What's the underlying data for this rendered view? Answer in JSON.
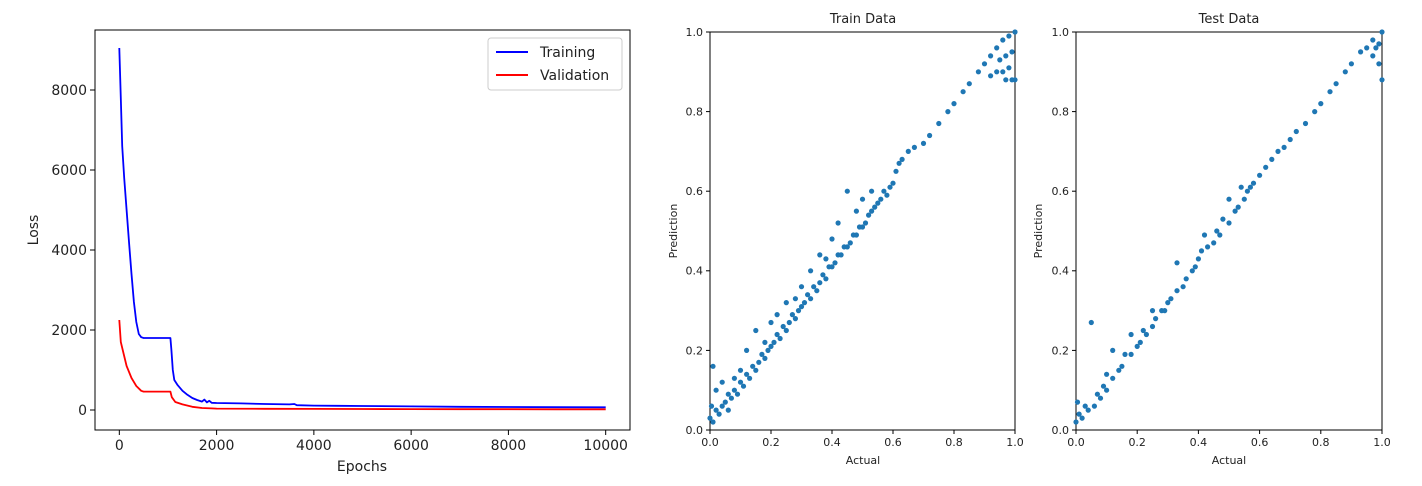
{
  "chart_data": [
    {
      "id": "loss",
      "type": "line",
      "title": "",
      "xlabel": "Epochs",
      "ylabel": "Loss",
      "xlim": [
        -500,
        10500
      ],
      "ylim": [
        -500,
        9500
      ],
      "xticks": [
        0,
        2000,
        4000,
        6000,
        8000,
        10000
      ],
      "yticks": [
        0,
        2000,
        4000,
        6000,
        8000
      ],
      "grid": false,
      "legend": "top-right",
      "series": [
        {
          "name": "Training",
          "color": "#0000ff",
          "x": [
            0,
            30,
            60,
            100,
            150,
            200,
            250,
            300,
            350,
            400,
            450,
            500,
            700,
            900,
            1050,
            1070,
            1100,
            1130,
            1200,
            1300,
            1400,
            1500,
            1600,
            1700,
            1750,
            1800,
            1850,
            1900,
            2000,
            2500,
            3000,
            3500,
            3600,
            3650,
            4000,
            4500,
            5000,
            6000,
            7000,
            8000,
            9000,
            10000
          ],
          "y": [
            9050,
            7800,
            6600,
            5800,
            5000,
            4200,
            3400,
            2700,
            2200,
            1900,
            1820,
            1800,
            1800,
            1800,
            1800,
            1500,
            1000,
            750,
            620,
            480,
            380,
            300,
            250,
            210,
            260,
            190,
            230,
            180,
            175,
            165,
            150,
            140,
            150,
            120,
            110,
            105,
            100,
            90,
            80,
            75,
            70,
            68
          ]
        },
        {
          "name": "Validation",
          "color": "#ff0000",
          "x": [
            0,
            30,
            80,
            150,
            250,
            350,
            450,
            500,
            700,
            900,
            1050,
            1080,
            1150,
            1300,
            1500,
            1700,
            1900,
            2000,
            3000,
            4000,
            5000,
            6000,
            7000,
            8000,
            9000,
            10000
          ],
          "y": [
            2250,
            1700,
            1450,
            1100,
            800,
            600,
            480,
            460,
            460,
            460,
            460,
            320,
            200,
            140,
            80,
            50,
            40,
            35,
            30,
            28,
            25,
            22,
            20,
            20,
            18,
            18
          ]
        }
      ]
    },
    {
      "id": "train",
      "type": "scatter",
      "title": "Train Data",
      "xlabel": "Actual",
      "ylabel": "Prediction",
      "xlim": [
        0,
        1
      ],
      "ylim": [
        0,
        1
      ],
      "xticks": [
        "0.0",
        "0.2",
        "0.4",
        "0.6",
        "0.8",
        "1.0"
      ],
      "yticks": [
        "0.0",
        "0.2",
        "0.4",
        "0.6",
        "0.8",
        "1.0"
      ],
      "grid": false,
      "color": "#1f77b4",
      "points": [
        [
          0.0,
          0.03
        ],
        [
          0.005,
          0.06
        ],
        [
          0.01,
          0.02
        ],
        [
          0.01,
          0.16
        ],
        [
          0.02,
          0.05
        ],
        [
          0.02,
          0.1
        ],
        [
          0.03,
          0.04
        ],
        [
          0.04,
          0.06
        ],
        [
          0.04,
          0.12
        ],
        [
          0.05,
          0.07
        ],
        [
          0.06,
          0.05
        ],
        [
          0.06,
          0.09
        ],
        [
          0.07,
          0.08
        ],
        [
          0.08,
          0.1
        ],
        [
          0.08,
          0.13
        ],
        [
          0.09,
          0.09
        ],
        [
          0.1,
          0.12
        ],
        [
          0.1,
          0.15
        ],
        [
          0.11,
          0.11
        ],
        [
          0.12,
          0.14
        ],
        [
          0.12,
          0.2
        ],
        [
          0.13,
          0.13
        ],
        [
          0.14,
          0.16
        ],
        [
          0.15,
          0.15
        ],
        [
          0.15,
          0.25
        ],
        [
          0.16,
          0.17
        ],
        [
          0.17,
          0.19
        ],
        [
          0.18,
          0.18
        ],
        [
          0.18,
          0.22
        ],
        [
          0.19,
          0.2
        ],
        [
          0.2,
          0.21
        ],
        [
          0.2,
          0.27
        ],
        [
          0.21,
          0.22
        ],
        [
          0.22,
          0.24
        ],
        [
          0.22,
          0.29
        ],
        [
          0.23,
          0.23
        ],
        [
          0.24,
          0.26
        ],
        [
          0.25,
          0.25
        ],
        [
          0.25,
          0.32
        ],
        [
          0.26,
          0.27
        ],
        [
          0.27,
          0.29
        ],
        [
          0.28,
          0.28
        ],
        [
          0.28,
          0.33
        ],
        [
          0.29,
          0.3
        ],
        [
          0.3,
          0.31
        ],
        [
          0.3,
          0.36
        ],
        [
          0.31,
          0.32
        ],
        [
          0.32,
          0.34
        ],
        [
          0.33,
          0.33
        ],
        [
          0.33,
          0.4
        ],
        [
          0.34,
          0.36
        ],
        [
          0.35,
          0.35
        ],
        [
          0.36,
          0.37
        ],
        [
          0.36,
          0.44
        ],
        [
          0.37,
          0.39
        ],
        [
          0.38,
          0.38
        ],
        [
          0.38,
          0.43
        ],
        [
          0.39,
          0.41
        ],
        [
          0.4,
          0.41
        ],
        [
          0.4,
          0.48
        ],
        [
          0.41,
          0.42
        ],
        [
          0.42,
          0.44
        ],
        [
          0.42,
          0.52
        ],
        [
          0.43,
          0.44
        ],
        [
          0.44,
          0.46
        ],
        [
          0.45,
          0.46
        ],
        [
          0.45,
          0.6
        ],
        [
          0.46,
          0.47
        ],
        [
          0.47,
          0.49
        ],
        [
          0.48,
          0.49
        ],
        [
          0.48,
          0.55
        ],
        [
          0.49,
          0.51
        ],
        [
          0.5,
          0.51
        ],
        [
          0.5,
          0.58
        ],
        [
          0.51,
          0.52
        ],
        [
          0.52,
          0.54
        ],
        [
          0.53,
          0.55
        ],
        [
          0.53,
          0.6
        ],
        [
          0.54,
          0.56
        ],
        [
          0.55,
          0.57
        ],
        [
          0.56,
          0.58
        ],
        [
          0.57,
          0.6
        ],
        [
          0.58,
          0.59
        ],
        [
          0.59,
          0.61
        ],
        [
          0.6,
          0.62
        ],
        [
          0.61,
          0.65
        ],
        [
          0.62,
          0.67
        ],
        [
          0.63,
          0.68
        ],
        [
          0.65,
          0.7
        ],
        [
          0.67,
          0.71
        ],
        [
          0.7,
          0.72
        ],
        [
          0.72,
          0.74
        ],
        [
          0.75,
          0.77
        ],
        [
          0.78,
          0.8
        ],
        [
          0.8,
          0.82
        ],
        [
          0.83,
          0.85
        ],
        [
          0.85,
          0.87
        ],
        [
          0.88,
          0.9
        ],
        [
          0.9,
          0.92
        ],
        [
          0.92,
          0.94
        ],
        [
          0.94,
          0.96
        ],
        [
          0.96,
          0.98
        ],
        [
          0.98,
          0.99
        ],
        [
          1.0,
          1.0
        ],
        [
          0.92,
          0.89
        ],
        [
          0.94,
          0.9
        ],
        [
          0.96,
          0.9
        ],
        [
          0.97,
          0.88
        ],
        [
          0.98,
          0.91
        ],
        [
          0.99,
          0.88
        ],
        [
          1.0,
          0.88
        ],
        [
          0.99,
          0.95
        ],
        [
          0.97,
          0.94
        ],
        [
          0.95,
          0.93
        ]
      ]
    },
    {
      "id": "test",
      "type": "scatter",
      "title": "Test Data",
      "xlabel": "Actual",
      "ylabel": "Prediction",
      "xlim": [
        0,
        1
      ],
      "ylim": [
        0,
        1
      ],
      "xticks": [
        "0.0",
        "0.2",
        "0.4",
        "0.6",
        "0.8",
        "1.0"
      ],
      "yticks": [
        "0.0",
        "0.2",
        "0.4",
        "0.6",
        "0.8",
        "1.0"
      ],
      "grid": false,
      "color": "#1f77b4",
      "points": [
        [
          0.0,
          0.02
        ],
        [
          0.005,
          0.07
        ],
        [
          0.01,
          0.04
        ],
        [
          0.02,
          0.03
        ],
        [
          0.03,
          0.06
        ],
        [
          0.04,
          0.05
        ],
        [
          0.05,
          0.27
        ],
        [
          0.06,
          0.06
        ],
        [
          0.07,
          0.09
        ],
        [
          0.08,
          0.08
        ],
        [
          0.09,
          0.11
        ],
        [
          0.1,
          0.1
        ],
        [
          0.1,
          0.14
        ],
        [
          0.12,
          0.13
        ],
        [
          0.12,
          0.2
        ],
        [
          0.14,
          0.15
        ],
        [
          0.15,
          0.16
        ],
        [
          0.16,
          0.19
        ],
        [
          0.18,
          0.19
        ],
        [
          0.18,
          0.24
        ],
        [
          0.2,
          0.21
        ],
        [
          0.21,
          0.22
        ],
        [
          0.22,
          0.25
        ],
        [
          0.23,
          0.24
        ],
        [
          0.25,
          0.26
        ],
        [
          0.25,
          0.3
        ],
        [
          0.26,
          0.28
        ],
        [
          0.28,
          0.3
        ],
        [
          0.29,
          0.3
        ],
        [
          0.3,
          0.32
        ],
        [
          0.31,
          0.33
        ],
        [
          0.33,
          0.35
        ],
        [
          0.33,
          0.42
        ],
        [
          0.35,
          0.36
        ],
        [
          0.36,
          0.38
        ],
        [
          0.38,
          0.4
        ],
        [
          0.39,
          0.41
        ],
        [
          0.4,
          0.43
        ],
        [
          0.41,
          0.45
        ],
        [
          0.42,
          0.49
        ],
        [
          0.43,
          0.46
        ],
        [
          0.45,
          0.47
        ],
        [
          0.46,
          0.5
        ],
        [
          0.47,
          0.49
        ],
        [
          0.48,
          0.53
        ],
        [
          0.5,
          0.52
        ],
        [
          0.5,
          0.58
        ],
        [
          0.52,
          0.55
        ],
        [
          0.53,
          0.56
        ],
        [
          0.54,
          0.61
        ],
        [
          0.55,
          0.58
        ],
        [
          0.56,
          0.6
        ],
        [
          0.57,
          0.61
        ],
        [
          0.58,
          0.62
        ],
        [
          0.6,
          0.64
        ],
        [
          0.62,
          0.66
        ],
        [
          0.64,
          0.68
        ],
        [
          0.66,
          0.7
        ],
        [
          0.68,
          0.71
        ],
        [
          0.7,
          0.73
        ],
        [
          0.72,
          0.75
        ],
        [
          0.75,
          0.77
        ],
        [
          0.78,
          0.8
        ],
        [
          0.8,
          0.82
        ],
        [
          0.83,
          0.85
        ],
        [
          0.85,
          0.87
        ],
        [
          0.88,
          0.9
        ],
        [
          0.9,
          0.92
        ],
        [
          0.93,
          0.95
        ],
        [
          0.95,
          0.96
        ],
        [
          0.97,
          0.98
        ],
        [
          1.0,
          1.0
        ],
        [
          0.97,
          0.94
        ],
        [
          0.98,
          0.96
        ],
        [
          0.99,
          0.92
        ],
        [
          1.0,
          0.88
        ],
        [
          0.99,
          0.97
        ]
      ]
    }
  ]
}
